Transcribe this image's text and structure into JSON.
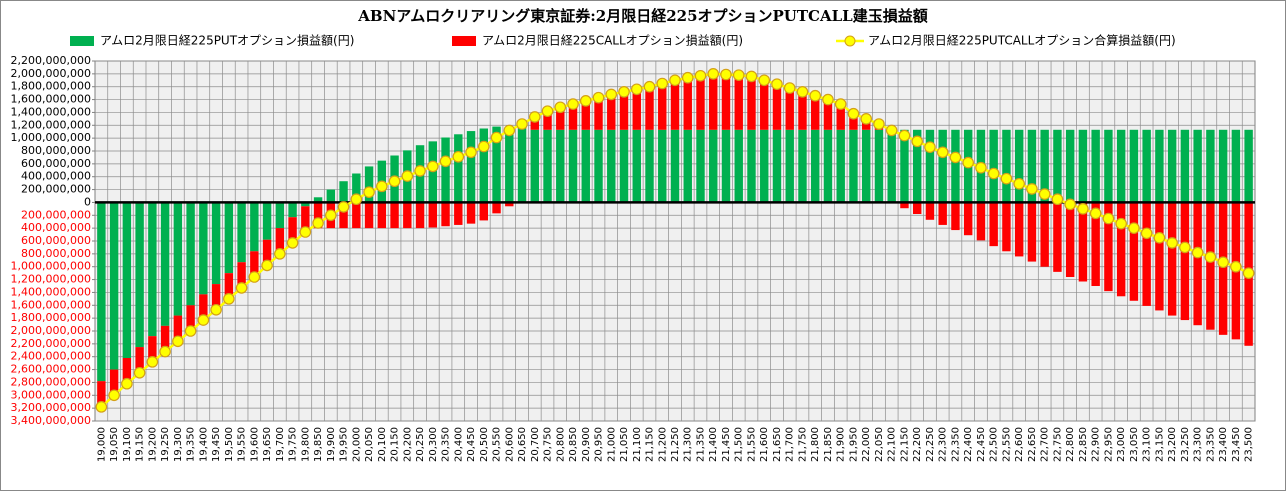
{
  "chart_data": {
    "type": "bar",
    "stacked": true,
    "title": "ABNアムロクリアリング東京証券:2月限日経225オプションPUTCALL建玉損益額",
    "categories": [
      "19,000",
      "19,050",
      "19,100",
      "19,150",
      "19,200",
      "19,250",
      "19,300",
      "19,350",
      "19,400",
      "19,450",
      "19,500",
      "19,550",
      "19,600",
      "19,650",
      "19,700",
      "19,750",
      "19,800",
      "19,850",
      "19,900",
      "19,950",
      "20,000",
      "20,050",
      "20,100",
      "20,150",
      "20,200",
      "20,250",
      "20,300",
      "20,350",
      "20,400",
      "20,450",
      "20,500",
      "20,550",
      "20,600",
      "20,650",
      "20,700",
      "20,750",
      "20,800",
      "20,850",
      "20,900",
      "20,950",
      "21,000",
      "21,050",
      "21,100",
      "21,150",
      "21,200",
      "21,250",
      "21,300",
      "21,350",
      "21,400",
      "21,450",
      "21,500",
      "21,550",
      "21,600",
      "21,650",
      "21,700",
      "21,750",
      "21,800",
      "21,850",
      "21,900",
      "21,950",
      "22,000",
      "22,050",
      "22,100",
      "22,150",
      "22,200",
      "22,250",
      "22,300",
      "22,350",
      "22,400",
      "22,450",
      "22,500",
      "22,550",
      "22,600",
      "22,650",
      "22,700",
      "22,750",
      "22,800",
      "22,850",
      "22,900",
      "22,950",
      "23,000",
      "23,050",
      "23,100",
      "23,150",
      "23,200",
      "23,250",
      "23,300",
      "23,350",
      "23,400",
      "23,450",
      "23,500"
    ],
    "series": [
      {
        "name": "アムロ2月限日経225PUTオプション損益額(円)",
        "type": "bar",
        "color": "#00b050",
        "values": [
          -2780000000.0,
          -2600000000.0,
          -2420000000.0,
          -2250000000.0,
          -2080000000.0,
          -1920000000.0,
          -1760000000.0,
          -1600000000.0,
          -1430000000.0,
          -1270000000.0,
          -1100000000.0,
          -930000000.0,
          -760000000.0,
          -580000000.0,
          -400000000.0,
          -230000000.0,
          -60000000.0,
          80000000.0,
          200000000.0,
          330000000.0,
          450000000.0,
          560000000.0,
          650000000.0,
          730000000.0,
          810000000.0,
          890000000.0,
          950000000.0,
          1010000000.0,
          1060000000.0,
          1110000000.0,
          1150000000.0,
          1180000000.0,
          1180000000.0,
          1150000000.0,
          1130000000.0,
          1130000000.0,
          1130000000.0,
          1130000000.0,
          1130000000.0,
          1130000000.0,
          1130000000.0,
          1130000000.0,
          1130000000.0,
          1130000000.0,
          1130000000.0,
          1130000000.0,
          1130000000.0,
          1130000000.0,
          1130000000.0,
          1130000000.0,
          1130000000.0,
          1130000000.0,
          1130000000.0,
          1130000000.0,
          1130000000.0,
          1130000000.0,
          1130000000.0,
          1130000000.0,
          1130000000.0,
          1130000000.0,
          1130000000.0,
          1130000000.0,
          1130000000.0,
          1130000000.0,
          1130000000.0,
          1130000000.0,
          1130000000.0,
          1130000000.0,
          1130000000.0,
          1130000000.0,
          1130000000.0,
          1130000000.0,
          1130000000.0,
          1130000000.0,
          1130000000.0,
          1130000000.0,
          1130000000.0,
          1130000000.0,
          1130000000.0,
          1130000000.0,
          1130000000.0,
          1130000000.0,
          1130000000.0,
          1130000000.0,
          1130000000.0,
          1130000000.0,
          1130000000.0,
          1130000000.0,
          1130000000.0,
          1130000000.0,
          1130000000.0
        ]
      },
      {
        "name": "アムロ2月限日経225CALLオプション損益額(円)",
        "type": "bar",
        "color": "#ff0000",
        "values": [
          -400000000.0,
          -400000000.0,
          -400000000.0,
          -400000000.0,
          -400000000.0,
          -400000000.0,
          -400000000.0,
          -400000000.0,
          -400000000.0,
          -400000000.0,
          -400000000.0,
          -400000000.0,
          -400000000.0,
          -400000000.0,
          -400000000.0,
          -400000000.0,
          -400000000.0,
          -400000000.0,
          -400000000.0,
          -400000000.0,
          -400000000.0,
          -400000000.0,
          -400000000.0,
          -400000000.0,
          -400000000.0,
          -400000000.0,
          -390000000.0,
          -370000000.0,
          -350000000.0,
          -330000000.0,
          -280000000.0,
          -170000000.0,
          -60000000.0,
          70000000.0,
          200000000.0,
          290000000.0,
          350000000.0,
          400000000.0,
          450000000.0,
          500000000.0,
          550000000.0,
          590000000.0,
          630000000.0,
          670000000.0,
          720000000.0,
          770000000.0,
          810000000.0,
          840000000.0,
          870000000.0,
          860000000.0,
          850000000.0,
          830000000.0,
          770000000.0,
          710000000.0,
          650000000.0,
          590000000.0,
          530000000.0,
          470000000.0,
          400000000.0,
          250000000.0,
          170000000.0,
          90000000.0,
          -10000000.0,
          -90000000.0,
          -180000000.0,
          -270000000.0,
          -350000000.0,
          -430000000.0,
          -510000000.0,
          -590000000.0,
          -680000000.0,
          -760000000.0,
          -840000000.0,
          -920000000.0,
          -1000000000.0,
          -1080000000.0,
          -1160000000.0,
          -1230000000.0,
          -1300000000.0,
          -1380000000.0,
          -1460000000.0,
          -1530000000.0,
          -1610000000.0,
          -1680000000.0,
          -1760000000.0,
          -1830000000.0,
          -1910000000.0,
          -1980000000.0,
          -2060000000.0,
          -2130000000.0,
          -2230000000.0
        ]
      },
      {
        "name": "アムロ2月限日経225PUTCALLオプション合算損益額(円)",
        "type": "line",
        "color": "#ffff00",
        "marker_edge_color": "#d4a017",
        "values": [
          -3180000000.0,
          -3000000000.0,
          -2820000000.0,
          -2650000000.0,
          -2480000000.0,
          -2320000000.0,
          -2160000000.0,
          -2000000000.0,
          -1830000000.0,
          -1670000000.0,
          -1500000000.0,
          -1330000000.0,
          -1160000000.0,
          -980000000.0,
          -800000000.0,
          -630000000.0,
          -460000000.0,
          -320000000.0,
          -200000000.0,
          -70000000.0,
          50000000.0,
          160000000.0,
          250000000.0,
          330000000.0,
          410000000.0,
          490000000.0,
          560000000.0,
          640000000.0,
          710000000.0,
          780000000.0,
          870000000.0,
          1010000000.0,
          1120000000.0,
          1220000000.0,
          1330000000.0,
          1420000000.0,
          1480000000.0,
          1530000000.0,
          1580000000.0,
          1630000000.0,
          1680000000.0,
          1720000000.0,
          1760000000.0,
          1800000000.0,
          1850000000.0,
          1900000000.0,
          1940000000.0,
          1970000000.0,
          2000000000.0,
          1990000000.0,
          1980000000.0,
          1960000000.0,
          1900000000.0,
          1840000000.0,
          1780000000.0,
          1720000000.0,
          1660000000.0,
          1600000000.0,
          1530000000.0,
          1380000000.0,
          1300000000.0,
          1220000000.0,
          1120000000.0,
          1040000000.0,
          950000000.0,
          860000000.0,
          780000000.0,
          700000000.0,
          620000000.0,
          540000000.0,
          450000000.0,
          370000000.0,
          290000000.0,
          210000000.0,
          130000000.0,
          50000000.0,
          -30000000.0,
          -100000000.0,
          -170000000.0,
          -250000000.0,
          -330000000.0,
          -400000000.0,
          -480000000.0,
          -550000000.0,
          -630000000.0,
          -700000000.0,
          -780000000.0,
          -850000000.0,
          -930000000.0,
          -1000000000.0,
          -1100000000.0
        ]
      }
    ],
    "ylim": [
      -3400000000.0,
      2200000000.0
    ],
    "yticks": [
      {
        "value": -3400000000.0,
        "label": "3,400,000,000"
      },
      {
        "value": -3200000000.0,
        "label": "3,200,000,000"
      },
      {
        "value": -3000000000.0,
        "label": "3,000,000,000"
      },
      {
        "value": -2800000000.0,
        "label": "2,800,000,000"
      },
      {
        "value": -2600000000.0,
        "label": "2,600,000,000"
      },
      {
        "value": -2400000000.0,
        "label": "2,400,000,000"
      },
      {
        "value": -2200000000.0,
        "label": "2,200,000,000"
      },
      {
        "value": -2000000000.0,
        "label": "2,000,000,000"
      },
      {
        "value": -1800000000.0,
        "label": "1,800,000,000"
      },
      {
        "value": -1600000000.0,
        "label": "1,600,000,000"
      },
      {
        "value": -1400000000.0,
        "label": "1,400,000,000"
      },
      {
        "value": -1200000000.0,
        "label": "1,200,000,000"
      },
      {
        "value": -1000000000.0,
        "label": "1,000,000,000"
      },
      {
        "value": -800000000.0,
        "label": "800,000,000"
      },
      {
        "value": -600000000.0,
        "label": "600,000,000"
      },
      {
        "value": -400000000.0,
        "label": "400,000,000"
      },
      {
        "value": -200000000.0,
        "label": "200,000,000"
      },
      0,
      {
        "value": 200000000.0,
        "label": "200,000,000"
      },
      {
        "value": 400000000.0,
        "label": "400,000,000"
      },
      {
        "value": 600000000.0,
        "label": "600,000,000"
      },
      {
        "value": 800000000.0,
        "label": "800,000,000"
      },
      {
        "value": 1000000000.0,
        "label": "1,000,000,000"
      },
      {
        "value": 1200000000.0,
        "label": "1,200,000,000"
      },
      {
        "value": 1400000000.0,
        "label": "1,400,000,000"
      },
      {
        "value": 1600000000.0,
        "label": "1,600,000,000"
      },
      {
        "value": 1800000000.0,
        "label": "1,800,000,000"
      },
      {
        "value": 2000000000.0,
        "label": "2,000,000,000"
      },
      {
        "value": 2200000000.0,
        "label": "2,200,000,000"
      }
    ],
    "negative_tick_color": "#ff0000",
    "grid": true,
    "legend": "top"
  }
}
